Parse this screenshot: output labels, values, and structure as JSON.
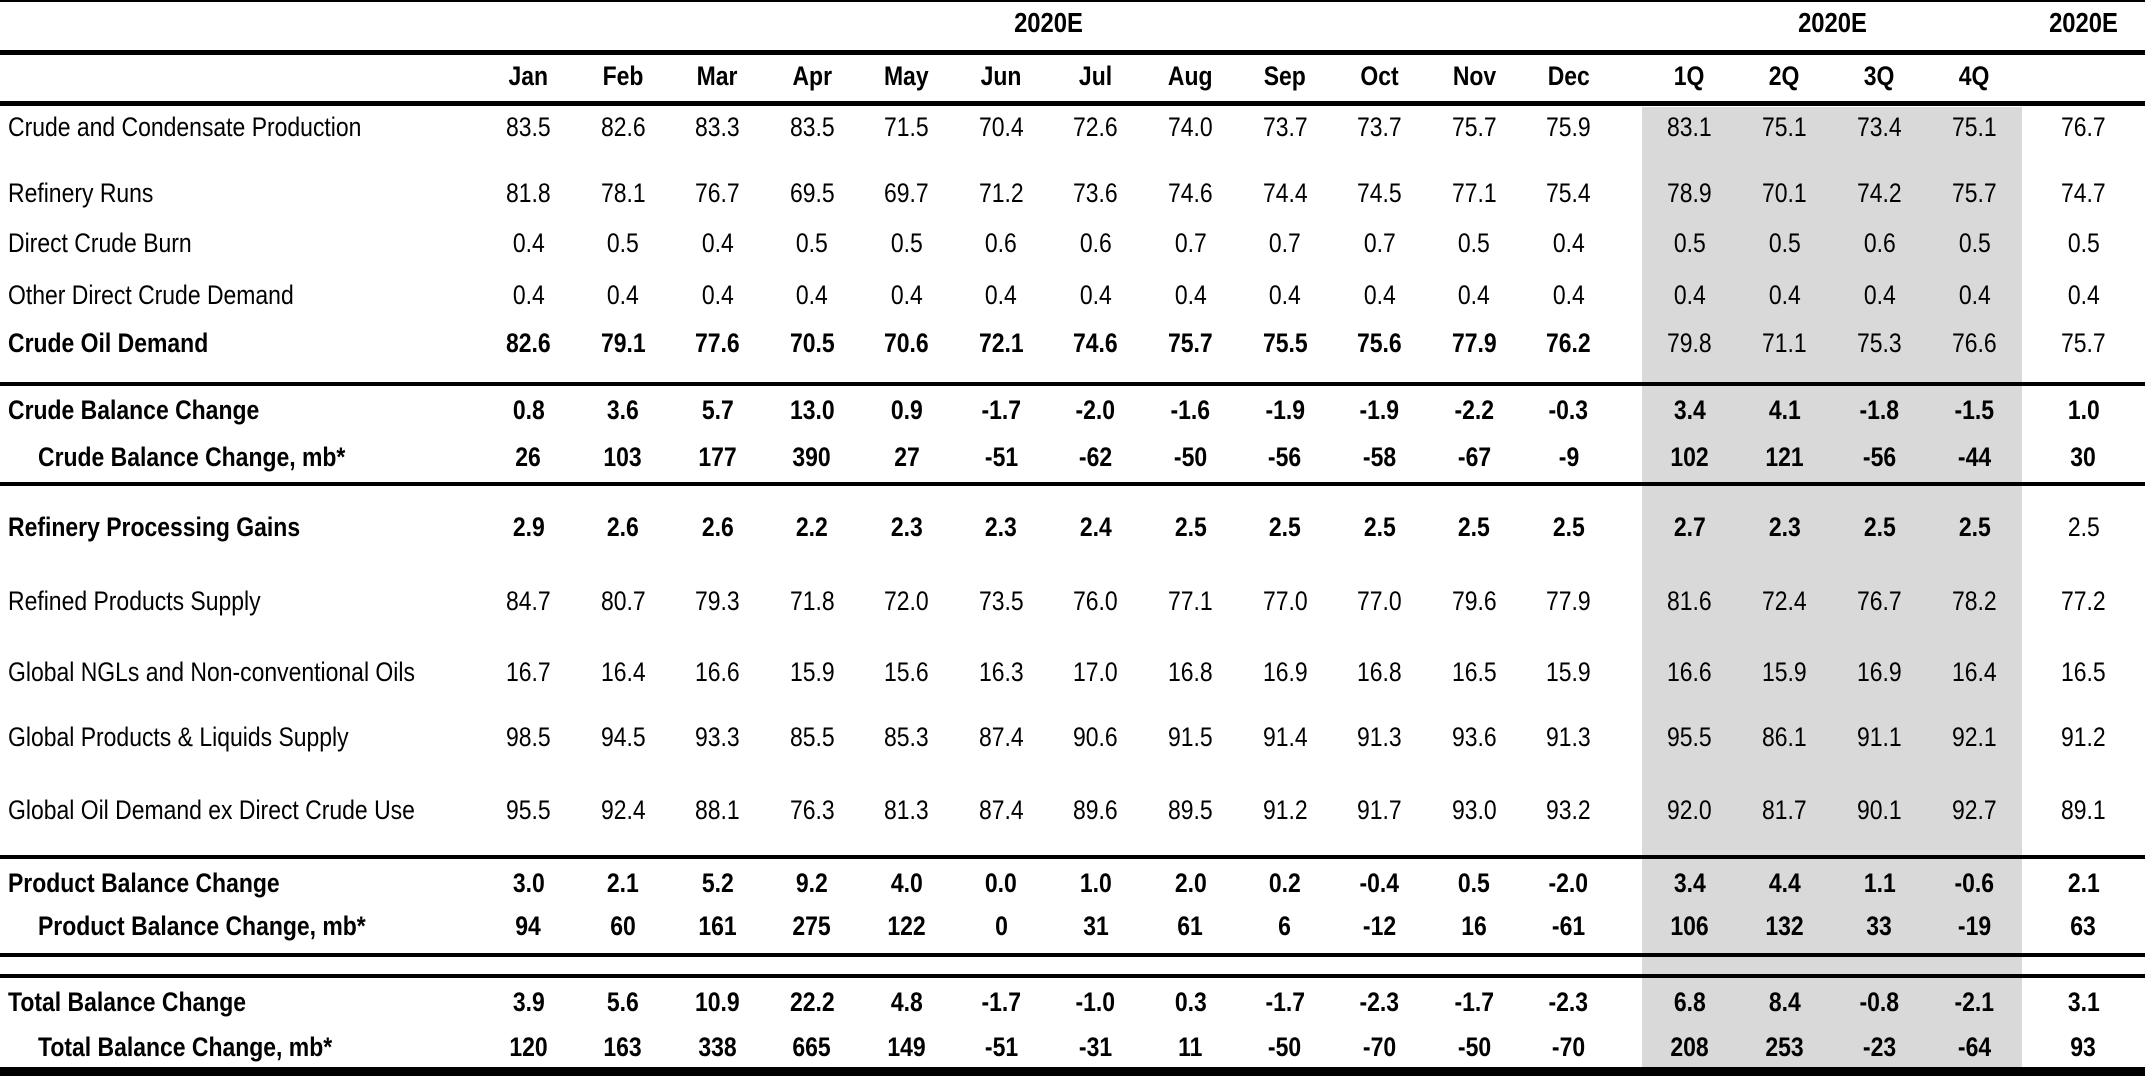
{
  "header": {
    "year_months": "2020E",
    "year_quarters": "2020E",
    "year_annual": "2020E",
    "months": [
      "Jan",
      "Feb",
      "Mar",
      "Apr",
      "May",
      "Jun",
      "Jul",
      "Aug",
      "Sep",
      "Oct",
      "Nov",
      "Dec"
    ],
    "quarters": [
      "1Q",
      "2Q",
      "3Q",
      "4Q"
    ]
  },
  "colors": {
    "quarter_band": "#d9d9d9",
    "rule": "#000000",
    "background": "#ffffff"
  },
  "rows": [
    {
      "label": "Crude and Condensate Production",
      "indent": false,
      "bold_label": false,
      "bold_months": false,
      "bold_quarters": false,
      "bold_annual": false,
      "months": [
        "83.5",
        "82.6",
        "83.3",
        "83.5",
        "71.5",
        "70.4",
        "72.6",
        "74.0",
        "73.7",
        "73.7",
        "75.7",
        "75.9"
      ],
      "quarters": [
        "83.1",
        "75.1",
        "73.4",
        "75.1"
      ],
      "annual": "76.7"
    },
    {
      "label": "Refinery Runs",
      "indent": false,
      "bold_label": false,
      "bold_months": false,
      "bold_quarters": false,
      "bold_annual": false,
      "months": [
        "81.8",
        "78.1",
        "76.7",
        "69.5",
        "69.7",
        "71.2",
        "73.6",
        "74.6",
        "74.4",
        "74.5",
        "77.1",
        "75.4"
      ],
      "quarters": [
        "78.9",
        "70.1",
        "74.2",
        "75.7"
      ],
      "annual": "74.7"
    },
    {
      "label": "Direct Crude Burn",
      "indent": false,
      "bold_label": false,
      "bold_months": false,
      "bold_quarters": false,
      "bold_annual": false,
      "months": [
        "0.4",
        "0.5",
        "0.4",
        "0.5",
        "0.5",
        "0.6",
        "0.6",
        "0.7",
        "0.7",
        "0.7",
        "0.5",
        "0.4"
      ],
      "quarters": [
        "0.5",
        "0.5",
        "0.6",
        "0.5"
      ],
      "annual": "0.5"
    },
    {
      "label": "Other Direct Crude Demand",
      "indent": false,
      "bold_label": false,
      "bold_months": false,
      "bold_quarters": false,
      "bold_annual": false,
      "months": [
        "0.4",
        "0.4",
        "0.4",
        "0.4",
        "0.4",
        "0.4",
        "0.4",
        "0.4",
        "0.4",
        "0.4",
        "0.4",
        "0.4"
      ],
      "quarters": [
        "0.4",
        "0.4",
        "0.4",
        "0.4"
      ],
      "annual": "0.4"
    },
    {
      "label": "Crude Oil Demand",
      "indent": false,
      "bold_label": true,
      "bold_months": true,
      "bold_quarters": false,
      "bold_annual": false,
      "months": [
        "82.6",
        "79.1",
        "77.6",
        "70.5",
        "70.6",
        "72.1",
        "74.6",
        "75.7",
        "75.5",
        "75.6",
        "77.9",
        "76.2"
      ],
      "quarters": [
        "79.8",
        "71.1",
        "75.3",
        "76.6"
      ],
      "annual": "75.7"
    },
    {
      "label": "Crude Balance Change",
      "indent": false,
      "bold_label": true,
      "bold_months": true,
      "bold_quarters": true,
      "bold_annual": true,
      "months": [
        "0.8",
        "3.6",
        "5.7",
        "13.0",
        "0.9",
        "-1.7",
        "-2.0",
        "-1.6",
        "-1.9",
        "-1.9",
        "-2.2",
        "-0.3"
      ],
      "quarters": [
        "3.4",
        "4.1",
        "-1.8",
        "-1.5"
      ],
      "annual": "1.0"
    },
    {
      "label": "Crude Balance Change, mb*",
      "indent": true,
      "bold_label": true,
      "bold_months": true,
      "bold_quarters": true,
      "bold_annual": true,
      "months": [
        "26",
        "103",
        "177",
        "390",
        "27",
        "-51",
        "-62",
        "-50",
        "-56",
        "-58",
        "-67",
        "-9"
      ],
      "quarters": [
        "102",
        "121",
        "-56",
        "-44"
      ],
      "annual": "30"
    },
    {
      "label": "Refinery Processing Gains",
      "indent": false,
      "bold_label": true,
      "bold_months": true,
      "bold_quarters": true,
      "bold_annual": false,
      "months": [
        "2.9",
        "2.6",
        "2.6",
        "2.2",
        "2.3",
        "2.3",
        "2.4",
        "2.5",
        "2.5",
        "2.5",
        "2.5",
        "2.5"
      ],
      "quarters": [
        "2.7",
        "2.3",
        "2.5",
        "2.5"
      ],
      "annual": "2.5"
    },
    {
      "label": "Refined Products Supply",
      "indent": false,
      "bold_label": false,
      "bold_months": false,
      "bold_quarters": false,
      "bold_annual": false,
      "months": [
        "84.7",
        "80.7",
        "79.3",
        "71.8",
        "72.0",
        "73.5",
        "76.0",
        "77.1",
        "77.0",
        "77.0",
        "79.6",
        "77.9"
      ],
      "quarters": [
        "81.6",
        "72.4",
        "76.7",
        "78.2"
      ],
      "annual": "77.2"
    },
    {
      "label": "Global NGLs and Non-conventional Oils",
      "indent": false,
      "bold_label": false,
      "bold_months": false,
      "bold_quarters": false,
      "bold_annual": false,
      "months": [
        "16.7",
        "16.4",
        "16.6",
        "15.9",
        "15.6",
        "16.3",
        "17.0",
        "16.8",
        "16.9",
        "16.8",
        "16.5",
        "15.9"
      ],
      "quarters": [
        "16.6",
        "15.9",
        "16.9",
        "16.4"
      ],
      "annual": "16.5"
    },
    {
      "label": "Global Products & Liquids Supply",
      "indent": false,
      "bold_label": false,
      "bold_months": false,
      "bold_quarters": false,
      "bold_annual": false,
      "months": [
        "98.5",
        "94.5",
        "93.3",
        "85.5",
        "85.3",
        "87.4",
        "90.6",
        "91.5",
        "91.4",
        "91.3",
        "93.6",
        "91.3"
      ],
      "quarters": [
        "95.5",
        "86.1",
        "91.1",
        "92.1"
      ],
      "annual": "91.2"
    },
    {
      "label": "Global Oil Demand ex Direct Crude Use",
      "indent": false,
      "bold_label": false,
      "bold_months": false,
      "bold_quarters": false,
      "bold_annual": false,
      "months": [
        "95.5",
        "92.4",
        "88.1",
        "76.3",
        "81.3",
        "87.4",
        "89.6",
        "89.5",
        "91.2",
        "91.7",
        "93.0",
        "93.2"
      ],
      "quarters": [
        "92.0",
        "81.7",
        "90.1",
        "92.7"
      ],
      "annual": "89.1"
    },
    {
      "label": "Product Balance Change",
      "indent": false,
      "bold_label": true,
      "bold_months": true,
      "bold_quarters": true,
      "bold_annual": true,
      "months": [
        "3.0",
        "2.1",
        "5.2",
        "9.2",
        "4.0",
        "0.0",
        "1.0",
        "2.0",
        "0.2",
        "-0.4",
        "0.5",
        "-2.0"
      ],
      "quarters": [
        "3.4",
        "4.4",
        "1.1",
        "-0.6"
      ],
      "annual": "2.1"
    },
    {
      "label": "Product Balance Change, mb*",
      "indent": true,
      "bold_label": true,
      "bold_months": true,
      "bold_quarters": true,
      "bold_annual": true,
      "months": [
        "94",
        "60",
        "161",
        "275",
        "122",
        "0",
        "31",
        "61",
        "6",
        "-12",
        "16",
        "-61"
      ],
      "quarters": [
        "106",
        "132",
        "33",
        "-19"
      ],
      "annual": "63"
    },
    {
      "label": "Total Balance Change",
      "indent": false,
      "bold_label": true,
      "bold_months": true,
      "bold_quarters": true,
      "bold_annual": true,
      "months": [
        "3.9",
        "5.6",
        "10.9",
        "22.2",
        "4.8",
        "-1.7",
        "-1.0",
        "0.3",
        "-1.7",
        "-2.3",
        "-1.7",
        "-2.3"
      ],
      "quarters": [
        "6.8",
        "8.4",
        "-0.8",
        "-2.1"
      ],
      "annual": "3.1"
    },
    {
      "label": "Total Balance Change, mb*",
      "indent": true,
      "bold_label": true,
      "bold_months": true,
      "bold_quarters": true,
      "bold_annual": true,
      "months": [
        "120",
        "163",
        "338",
        "665",
        "149",
        "-51",
        "-31",
        "11",
        "-50",
        "-70",
        "-50",
        "-70"
      ],
      "quarters": [
        "208",
        "253",
        "-23",
        "-64"
      ],
      "annual": "93"
    }
  ]
}
